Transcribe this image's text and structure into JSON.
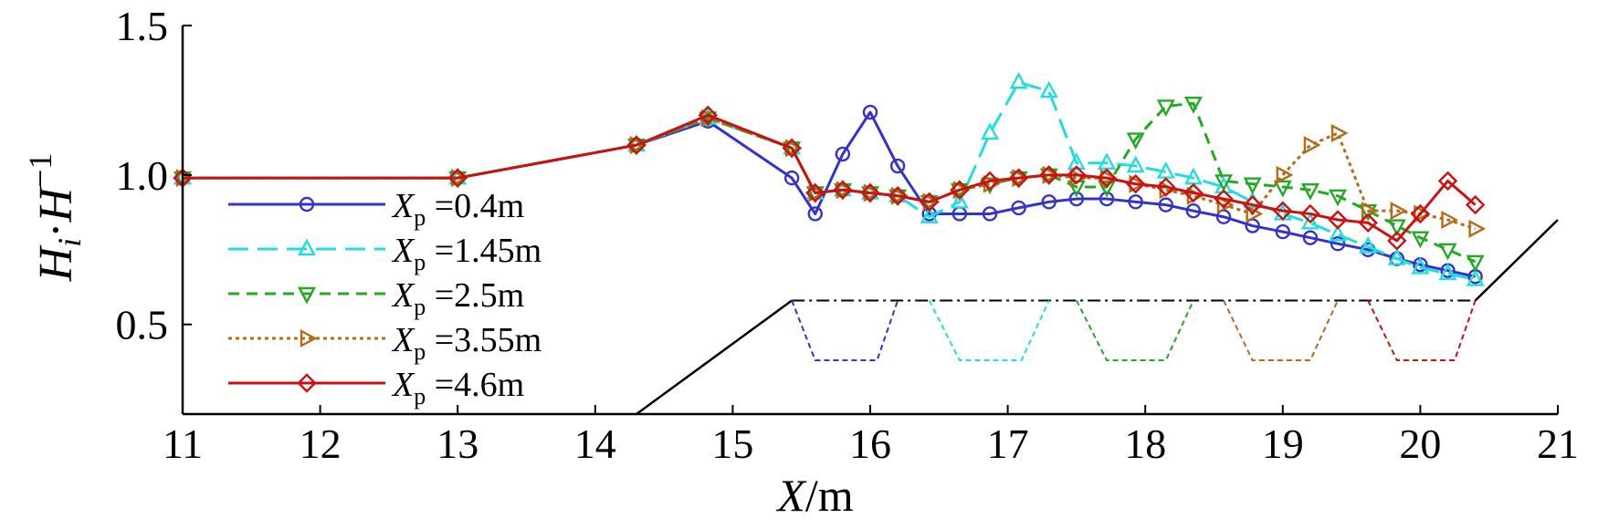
{
  "chart_data": {
    "type": "line",
    "xlabel": {
      "italic": "X",
      "rest": "/m"
    },
    "ylabel": {
      "H": "H",
      "i": "i",
      "dot": "·",
      "H2": "H",
      "sup": "−1"
    },
    "xlim": [
      11,
      21
    ],
    "ylim": [
      0.2,
      1.5
    ],
    "xticks": [
      11,
      12,
      13,
      14,
      15,
      16,
      17,
      18,
      19,
      20,
      21
    ],
    "xtick_labels": [
      "11",
      "12",
      "13",
      "14",
      "15",
      "16",
      "17",
      "18",
      "19",
      "20",
      "21"
    ],
    "yticks": [
      0.5,
      1.0,
      1.5
    ],
    "ytick_labels": [
      "0.5",
      "1.0",
      "1.5"
    ],
    "legend_position": "left",
    "series": [
      {
        "name": "X_p=0.4m",
        "legend": {
          "var": "X",
          "sub": "p",
          "rest": "=0.4m"
        },
        "color": "#3333cc",
        "dash": "solid",
        "marker": "circle",
        "x": [
          11,
          13,
          14.3,
          14.82,
          15.43,
          15.6,
          15.8,
          16.0,
          16.2,
          16.43,
          16.65,
          16.87,
          17.08,
          17.3,
          17.5,
          17.72,
          17.93,
          18.15,
          18.35,
          18.57,
          18.78,
          19.0,
          19.2,
          19.4,
          19.62,
          19.83,
          20.0,
          20.2,
          20.4
        ],
        "y": [
          0.99,
          0.99,
          1.1,
          1.18,
          0.99,
          0.87,
          1.07,
          1.21,
          1.03,
          0.87,
          0.87,
          0.87,
          0.89,
          0.91,
          0.92,
          0.92,
          0.91,
          0.9,
          0.88,
          0.86,
          0.83,
          0.81,
          0.79,
          0.77,
          0.75,
          0.72,
          0.7,
          0.68,
          0.66
        ]
      },
      {
        "name": "X_p=1.45m",
        "legend": {
          "var": "X",
          "sub": "p",
          "rest": "=1.45m"
        },
        "color": "#22dddd",
        "dash": "longdash",
        "marker": "triangle-up",
        "x": [
          11,
          13,
          14.3,
          14.82,
          15.43,
          15.6,
          15.8,
          16.0,
          16.2,
          16.43,
          16.65,
          16.87,
          17.08,
          17.3,
          17.5,
          17.72,
          17.93,
          18.15,
          18.35,
          18.57,
          18.78,
          19.0,
          19.2,
          19.4,
          19.62,
          19.83,
          20.0,
          20.2,
          20.4
        ],
        "y": [
          0.99,
          0.99,
          1.1,
          1.19,
          1.09,
          0.94,
          0.95,
          0.94,
          0.93,
          0.86,
          0.91,
          1.14,
          1.31,
          1.28,
          1.04,
          1.04,
          1.03,
          1.01,
          0.99,
          0.96,
          0.91,
          0.87,
          0.84,
          0.8,
          0.76,
          0.72,
          0.69,
          0.67,
          0.65
        ]
      },
      {
        "name": "X_p=2.5m",
        "legend": {
          "var": "X",
          "sub": "p",
          "rest": "=2.5m"
        },
        "color": "#22aa22",
        "dash": "dash",
        "marker": "triangle-down",
        "x": [
          11,
          13,
          14.3,
          14.82,
          15.43,
          15.6,
          15.8,
          16.0,
          16.2,
          16.43,
          16.65,
          16.87,
          17.08,
          17.3,
          17.5,
          17.72,
          17.93,
          18.15,
          18.35,
          18.57,
          18.78,
          19.0,
          19.2,
          19.4,
          19.62,
          19.83,
          20.0,
          20.2,
          20.4
        ],
        "y": [
          0.99,
          0.99,
          1.1,
          1.19,
          1.09,
          0.94,
          0.95,
          0.94,
          0.93,
          0.91,
          0.95,
          0.97,
          0.99,
          1.0,
          0.96,
          0.96,
          1.12,
          1.23,
          1.24,
          0.98,
          0.97,
          0.96,
          0.95,
          0.93,
          0.88,
          0.83,
          0.79,
          0.75,
          0.71
        ]
      },
      {
        "name": "X_p=3.55m",
        "legend": {
          "var": "X",
          "sub": "p",
          "rest": "=3.55m"
        },
        "color": "#b36b1a",
        "dash": "dot",
        "marker": "triangle-right",
        "x": [
          11,
          13,
          14.3,
          14.82,
          15.43,
          15.6,
          15.8,
          16.0,
          16.2,
          16.43,
          16.65,
          16.87,
          17.08,
          17.3,
          17.5,
          17.72,
          17.93,
          18.15,
          18.35,
          18.57,
          18.78,
          19.0,
          19.2,
          19.4,
          19.62,
          19.83,
          20.0,
          20.2,
          20.4
        ],
        "y": [
          0.99,
          0.99,
          1.1,
          1.19,
          1.09,
          0.94,
          0.95,
          0.94,
          0.93,
          0.91,
          0.95,
          0.97,
          0.99,
          1.0,
          0.99,
          0.99,
          0.97,
          0.95,
          0.93,
          0.9,
          0.87,
          1.0,
          1.1,
          1.14,
          0.88,
          0.88,
          0.87,
          0.85,
          0.82
        ]
      },
      {
        "name": "X_p=4.6m",
        "legend": {
          "var": "X",
          "sub": "p",
          "rest": "=4.6m"
        },
        "color": "#cc1111",
        "dash": "solid",
        "marker": "diamond",
        "x": [
          11,
          13,
          14.3,
          14.82,
          15.43,
          15.6,
          15.8,
          16.0,
          16.2,
          16.43,
          16.65,
          16.87,
          17.08,
          17.3,
          17.5,
          17.72,
          17.93,
          18.15,
          18.35,
          18.57,
          18.78,
          19.0,
          19.2,
          19.4,
          19.62,
          19.83,
          20.0,
          20.2,
          20.4
        ],
        "y": [
          0.99,
          0.99,
          1.1,
          1.2,
          1.09,
          0.94,
          0.95,
          0.94,
          0.93,
          0.91,
          0.95,
          0.98,
          0.99,
          1.0,
          1.0,
          0.99,
          0.97,
          0.96,
          0.94,
          0.92,
          0.9,
          0.88,
          0.87,
          0.85,
          0.84,
          0.78,
          0.87,
          0.98,
          0.9
        ]
      }
    ],
    "profile": {
      "bed_top": 0.58,
      "bed_bottom": 0.2,
      "trench_bottom": 0.38,
      "slope_left": [
        [
          14.3,
          0.2
        ],
        [
          15.43,
          0.58
        ]
      ],
      "slope_right": [
        [
          20.4,
          0.58
        ],
        [
          21.0,
          0.85
        ]
      ],
      "crest_line_color": "#000000",
      "trenches": [
        {
          "x": [
            15.43,
            15.6,
            16.05,
            16.2
          ],
          "color": "#3333cc"
        },
        {
          "x": [
            16.43,
            16.65,
            17.1,
            17.3
          ],
          "color": "#22dddd"
        },
        {
          "x": [
            17.5,
            17.72,
            18.15,
            18.35
          ],
          "color": "#22aa22"
        },
        {
          "x": [
            18.57,
            18.78,
            19.2,
            19.4
          ],
          "color": "#b36b1a"
        },
        {
          "x": [
            19.62,
            19.83,
            20.25,
            20.4
          ],
          "color": "#cc1111"
        }
      ]
    }
  }
}
